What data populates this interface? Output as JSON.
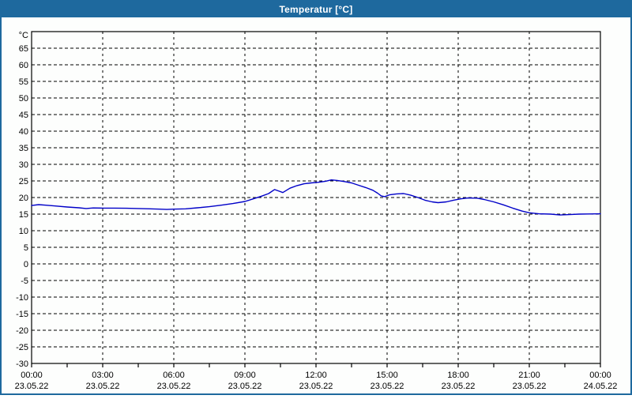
{
  "window": {
    "title": "Temperatur [°C]"
  },
  "colors": {
    "titlebar": "#1E699E",
    "border": "#1E699E",
    "plot_background": "#fdfefd",
    "grid": "#000000",
    "axis": "#000000",
    "line": "#0000C8",
    "title_text": "#ffffff"
  },
  "chart_data": {
    "type": "line",
    "title": "Temperatur [°C]",
    "ylabel": "°C",
    "xlabel": "",
    "ylim": [
      -30,
      70
    ],
    "xlim_hours": [
      0,
      24
    ],
    "grid": "dashed",
    "legend": "none",
    "y_ticks": [
      65,
      60,
      55,
      50,
      45,
      40,
      35,
      30,
      25,
      20,
      15,
      10,
      5,
      0,
      -5,
      -10,
      -15,
      -20,
      -25,
      -30
    ],
    "x_ticks": [
      {
        "hour": 0,
        "time": "00:00",
        "date": "23.05.22"
      },
      {
        "hour": 3,
        "time": "03:00",
        "date": "23.05.22"
      },
      {
        "hour": 6,
        "time": "06:00",
        "date": "23.05.22"
      },
      {
        "hour": 9,
        "time": "09:00",
        "date": "23.05.22"
      },
      {
        "hour": 12,
        "time": "12:00",
        "date": "23.05.22"
      },
      {
        "hour": 15,
        "time": "15:00",
        "date": "23.05.22"
      },
      {
        "hour": 18,
        "time": "18:00",
        "date": "23.05.22"
      },
      {
        "hour": 21,
        "time": "21:00",
        "date": "23.05.22"
      },
      {
        "hour": 24,
        "time": "00:00",
        "date": "24.05.22"
      }
    ],
    "minor_tick_step_hours": 1.5,
    "series": [
      {
        "name": "Temperatur",
        "color": "#0000C8",
        "points": [
          [
            0.0,
            17.6
          ],
          [
            0.3,
            17.85
          ],
          [
            0.6,
            17.7
          ],
          [
            1.0,
            17.45
          ],
          [
            1.5,
            17.15
          ],
          [
            2.0,
            16.9
          ],
          [
            2.3,
            16.7
          ],
          [
            2.6,
            16.85
          ],
          [
            3.0,
            16.8
          ],
          [
            3.5,
            16.8
          ],
          [
            4.0,
            16.75
          ],
          [
            4.5,
            16.7
          ],
          [
            5.0,
            16.6
          ],
          [
            5.4,
            16.5
          ],
          [
            5.7,
            16.4
          ],
          [
            6.0,
            16.5
          ],
          [
            6.5,
            16.6
          ],
          [
            7.0,
            16.9
          ],
          [
            7.5,
            17.25
          ],
          [
            8.0,
            17.7
          ],
          [
            8.5,
            18.2
          ],
          [
            9.0,
            18.8
          ],
          [
            9.35,
            19.6
          ],
          [
            9.7,
            20.4
          ],
          [
            10.0,
            21.2
          ],
          [
            10.25,
            22.4
          ],
          [
            10.45,
            21.9
          ],
          [
            10.6,
            21.5
          ],
          [
            10.9,
            22.8
          ],
          [
            11.2,
            23.6
          ],
          [
            11.5,
            24.15
          ],
          [
            11.8,
            24.4
          ],
          [
            12.1,
            24.6
          ],
          [
            12.4,
            24.9
          ],
          [
            12.65,
            25.3
          ],
          [
            12.9,
            25.15
          ],
          [
            13.2,
            24.8
          ],
          [
            13.5,
            24.4
          ],
          [
            13.8,
            23.7
          ],
          [
            14.1,
            23.0
          ],
          [
            14.4,
            22.2
          ],
          [
            14.6,
            21.3
          ],
          [
            14.75,
            20.5
          ],
          [
            14.9,
            20.25
          ],
          [
            15.1,
            20.8
          ],
          [
            15.4,
            21.1
          ],
          [
            15.7,
            21.2
          ],
          [
            16.0,
            20.7
          ],
          [
            16.3,
            20.0
          ],
          [
            16.6,
            19.2
          ],
          [
            16.9,
            18.7
          ],
          [
            17.15,
            18.45
          ],
          [
            17.5,
            18.7
          ],
          [
            17.8,
            19.2
          ],
          [
            18.1,
            19.6
          ],
          [
            18.4,
            19.85
          ],
          [
            18.8,
            19.8
          ],
          [
            19.1,
            19.4
          ],
          [
            19.5,
            18.7
          ],
          [
            19.9,
            17.8
          ],
          [
            20.3,
            16.8
          ],
          [
            20.7,
            15.9
          ],
          [
            21.0,
            15.4
          ],
          [
            21.4,
            15.1
          ],
          [
            21.9,
            15.0
          ],
          [
            22.3,
            14.75
          ],
          [
            22.7,
            14.85
          ],
          [
            23.1,
            15.0
          ],
          [
            23.5,
            15.05
          ],
          [
            24.0,
            15.1
          ]
        ]
      }
    ]
  }
}
